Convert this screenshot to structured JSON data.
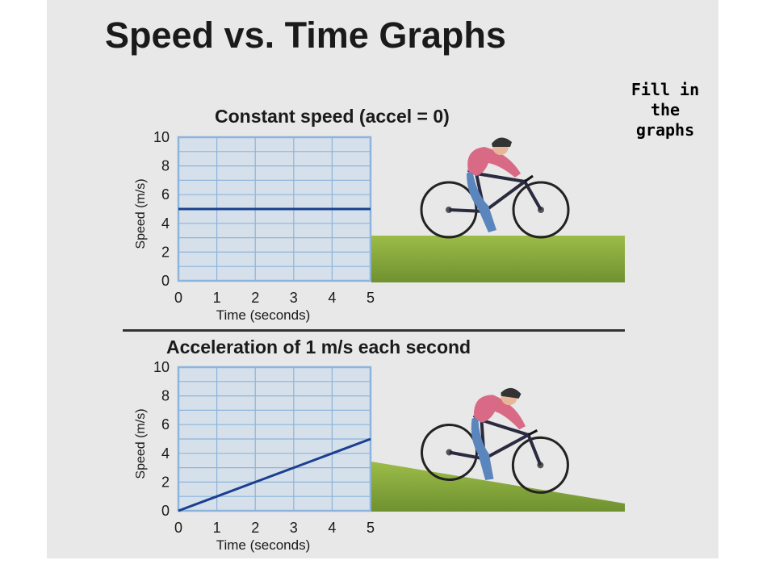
{
  "page": {
    "title": "Speed vs. Time Graphs",
    "note": "Fill in the graphs"
  },
  "colors": {
    "plot_bg": "#d6e0ea",
    "grid": "#8cb4dc",
    "line": "#1b3f8f",
    "ground": "#8aab3c",
    "slide_bg": "#e8e8e8"
  },
  "chart_data": [
    {
      "type": "line",
      "title": "Constant speed (accel = 0)",
      "xlabel": "Time (seconds)",
      "ylabel": "Speed (m/s)",
      "x": [
        0,
        1,
        2,
        3,
        4,
        5
      ],
      "series": [
        {
          "values": [
            5,
            5,
            5,
            5,
            5,
            5
          ]
        }
      ],
      "xlim": [
        0,
        5
      ],
      "ylim": [
        0,
        10
      ],
      "xticks": [
        "0",
        "1",
        "2",
        "3",
        "4",
        "5"
      ],
      "yticks": [
        "0",
        "2",
        "4",
        "6",
        "8",
        "10"
      ],
      "grid": true
    },
    {
      "type": "line",
      "title": "Acceleration of 1 m/s each second",
      "xlabel": "Time (seconds)",
      "ylabel": "Speed (m/s)",
      "x": [
        0,
        1,
        2,
        3,
        4,
        5
      ],
      "series": [
        {
          "values": [
            0,
            1,
            2,
            3,
            4,
            5
          ]
        }
      ],
      "xlim": [
        0,
        5
      ],
      "ylim": [
        0,
        10
      ],
      "xticks": [
        "0",
        "1",
        "2",
        "3",
        "4",
        "5"
      ],
      "yticks": [
        "0",
        "2",
        "4",
        "6",
        "8",
        "10"
      ],
      "grid": true
    }
  ],
  "illustrations": [
    {
      "icon": "bicycle-rider-icon",
      "terrain": "flat-ground"
    },
    {
      "icon": "bicycle-rider-icon",
      "terrain": "downhill-slope"
    }
  ]
}
